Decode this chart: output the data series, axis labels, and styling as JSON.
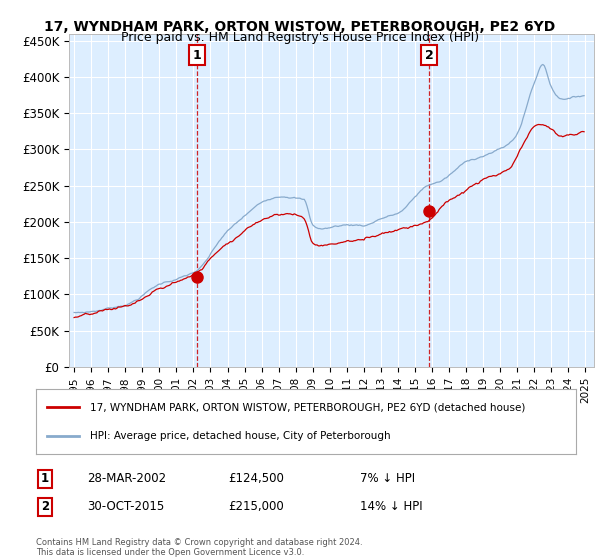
{
  "title": "17, WYNDHAM PARK, ORTON WISTOW, PETERBOROUGH, PE2 6YD",
  "subtitle": "Price paid vs. HM Land Registry's House Price Index (HPI)",
  "ylim": [
    0,
    460000
  ],
  "yticks": [
    0,
    50000,
    100000,
    150000,
    200000,
    250000,
    300000,
    350000,
    400000,
    450000
  ],
  "ytick_labels": [
    "£0",
    "£50K",
    "£100K",
    "£150K",
    "£200K",
    "£250K",
    "£300K",
    "£350K",
    "£400K",
    "£450K"
  ],
  "xlim_start": 1994.7,
  "xlim_end": 2025.5,
  "background_color": "#ffffff",
  "plot_bg_color": "#ddeeff",
  "grid_color": "#ffffff",
  "sale1_date": 2002.23,
  "sale1_price": 124500,
  "sale2_date": 2015.83,
  "sale2_price": 215000,
  "legend_line1": "17, WYNDHAM PARK, ORTON WISTOW, PETERBOROUGH, PE2 6YD (detached house)",
  "legend_line2": "HPI: Average price, detached house, City of Peterborough",
  "annotation1": "28-MAR-2002",
  "annotation1_price": "£124,500",
  "annotation1_hpi": "7% ↓ HPI",
  "annotation2": "30-OCT-2015",
  "annotation2_price": "£215,000",
  "annotation2_hpi": "14% ↓ HPI",
  "footnote": "Contains HM Land Registry data © Crown copyright and database right 2024.\nThis data is licensed under the Open Government Licence v3.0.",
  "red_color": "#cc0000",
  "blue_color": "#88aacc"
}
